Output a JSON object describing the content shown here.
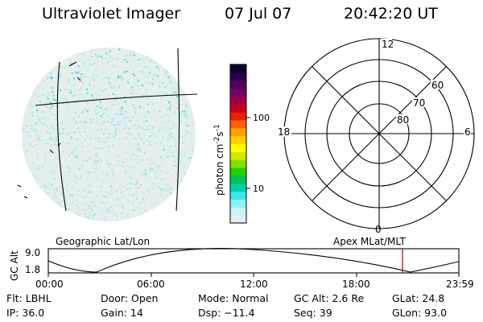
{
  "header": {
    "instrument": "Ultraviolet Imager",
    "date": "07 Jul 07",
    "time": "20:42:20 UT"
  },
  "colorbar": {
    "label_main": "photon cm",
    "label_exp1": "-2",
    "label_s": "s",
    "label_exp2": "-1",
    "ticks": [
      {
        "label": "100",
        "value": 100
      },
      {
        "label": "10",
        "value": 10
      }
    ],
    "colors": [
      "#e8eef0",
      "#c8f4f4",
      "#8ff0f0",
      "#41e6e6",
      "#00d0b0",
      "#00c060",
      "#20d000",
      "#80e000",
      "#d0e800",
      "#ffff00",
      "#ffd000",
      "#ffa000",
      "#ff6000",
      "#e82000",
      "#c80020",
      "#a00040",
      "#780060",
      "#500060",
      "#2a0050",
      "#10002e"
    ]
  },
  "polar_plot": {
    "clock_labels": {
      "top": "12",
      "left": "18",
      "right": "6",
      "bottom": "0"
    },
    "lat_labels": [
      "60",
      "70",
      "80"
    ]
  },
  "timeline": {
    "left_title": "Geographic Lat/Lon",
    "right_title": "Apex MLat/MLT",
    "y_axis_label": "GC Alt",
    "y_ticks": [
      "9.0",
      "1.8"
    ],
    "x_ticks": [
      "00:00",
      "06:00",
      "12:00",
      "18:00",
      "23:59"
    ],
    "current_time_marker": "20:42",
    "marker_color": "#b00000"
  },
  "footer": {
    "row1": [
      "Flt: LBHL",
      "Door: Open",
      "Mode: Normal",
      "GC Alt: 2.6 Re",
      "GLat: 24.8"
    ],
    "row2": [
      "IP: 36.0",
      "Gain: 14",
      "Dsp: −11.4",
      "Seq: 39",
      "GLon: 93.0"
    ]
  }
}
